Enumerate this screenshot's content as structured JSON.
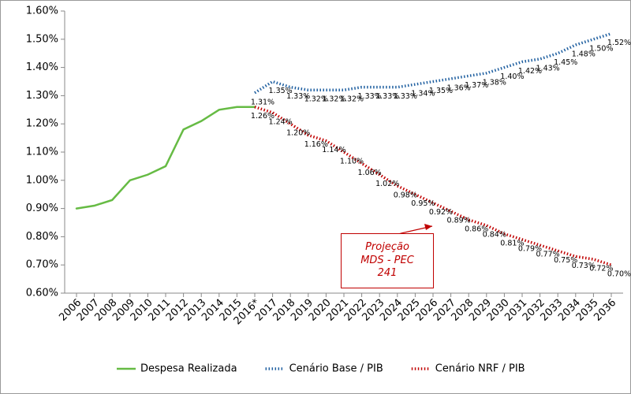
{
  "chart_data": {
    "type": "line",
    "categories": [
      "2006",
      "2007",
      "2008",
      "2009",
      "2010",
      "2011",
      "2012",
      "2013",
      "2014",
      "2015",
      "2016*",
      "2017",
      "2018",
      "2019",
      "2020",
      "2021",
      "2022",
      "2023",
      "2024",
      "2025",
      "2026",
      "2027",
      "2028",
      "2029",
      "2030",
      "2031",
      "2032",
      "2033",
      "2034",
      "2035",
      "2036"
    ],
    "series": [
      {
        "name": "Despesa Realizada",
        "color": "#66bb44",
        "style": "solid",
        "values": [
          0.9,
          0.91,
          0.93,
          1.0,
          1.02,
          1.05,
          1.18,
          1.21,
          1.25,
          1.26,
          1.26,
          null,
          null,
          null,
          null,
          null,
          null,
          null,
          null,
          null,
          null,
          null,
          null,
          null,
          null,
          null,
          null,
          null,
          null,
          null,
          null
        ]
      },
      {
        "name": "Cenário Base / PIB",
        "color": "#1f5fa0",
        "style": "dotted",
        "values": [
          null,
          null,
          null,
          null,
          null,
          null,
          null,
          null,
          null,
          null,
          1.31,
          1.35,
          1.33,
          1.32,
          1.32,
          1.32,
          1.33,
          1.33,
          1.33,
          1.34,
          1.35,
          1.36,
          1.37,
          1.38,
          1.4,
          1.42,
          1.43,
          1.45,
          1.48,
          1.5,
          1.52
        ],
        "value_labels": [
          null,
          null,
          null,
          null,
          null,
          null,
          null,
          null,
          null,
          null,
          "1.31%",
          "1.35%",
          "1.33%",
          "1.32%",
          "1.32%",
          "1.32%",
          "1.33%",
          "1.33%",
          "1.33%",
          "1.34%",
          "1.35%",
          "1.36%",
          "1.37%",
          "1.38%",
          "1.40%",
          "1.42%",
          "1.43%",
          "1.45%",
          "1.48%",
          "1.50%",
          "1.52%"
        ]
      },
      {
        "name": "Cenário NRF / PIB",
        "color": "#c00000",
        "style": "dotted",
        "values": [
          null,
          null,
          null,
          null,
          null,
          null,
          null,
          null,
          null,
          null,
          1.26,
          1.24,
          1.2,
          1.16,
          1.14,
          1.1,
          1.06,
          1.02,
          0.98,
          0.95,
          0.92,
          0.89,
          0.86,
          0.84,
          0.81,
          0.79,
          0.77,
          0.75,
          0.73,
          0.72,
          0.7
        ],
        "value_labels": [
          null,
          null,
          null,
          null,
          null,
          null,
          null,
          null,
          null,
          null,
          "1.26%",
          "1.24%",
          "1.20%",
          "1.16%",
          "1.14%",
          "1.10%",
          "1.06%",
          "1.02%",
          "0.98%",
          "0.95%",
          "0.92%",
          "0.89%",
          "0.86%",
          "0.84%",
          "0.81%",
          "0.79%",
          "0.77%",
          "0.75%",
          "0.73%",
          "0.72%",
          "0.70%"
        ]
      }
    ],
    "ylim": [
      0.6,
      1.6
    ],
    "yticks": [
      {
        "value": 0.6,
        "label": "0.60%"
      },
      {
        "value": 0.7,
        "label": "0.70%"
      },
      {
        "value": 0.8,
        "label": "0.80%"
      },
      {
        "value": 0.9,
        "label": "0.90%"
      },
      {
        "value": 1.0,
        "label": "1.00%"
      },
      {
        "value": 1.1,
        "label": "1.10%"
      },
      {
        "value": 1.2,
        "label": "1.20%"
      },
      {
        "value": 1.3,
        "label": "1.30%"
      },
      {
        "value": 1.4,
        "label": "1.40%"
      },
      {
        "value": 1.5,
        "label": "1.50%"
      },
      {
        "value": 1.6,
        "label": "1.60%"
      }
    ],
    "annotation": "Projeção MDS - PEC 241",
    "legend": "bottom"
  }
}
